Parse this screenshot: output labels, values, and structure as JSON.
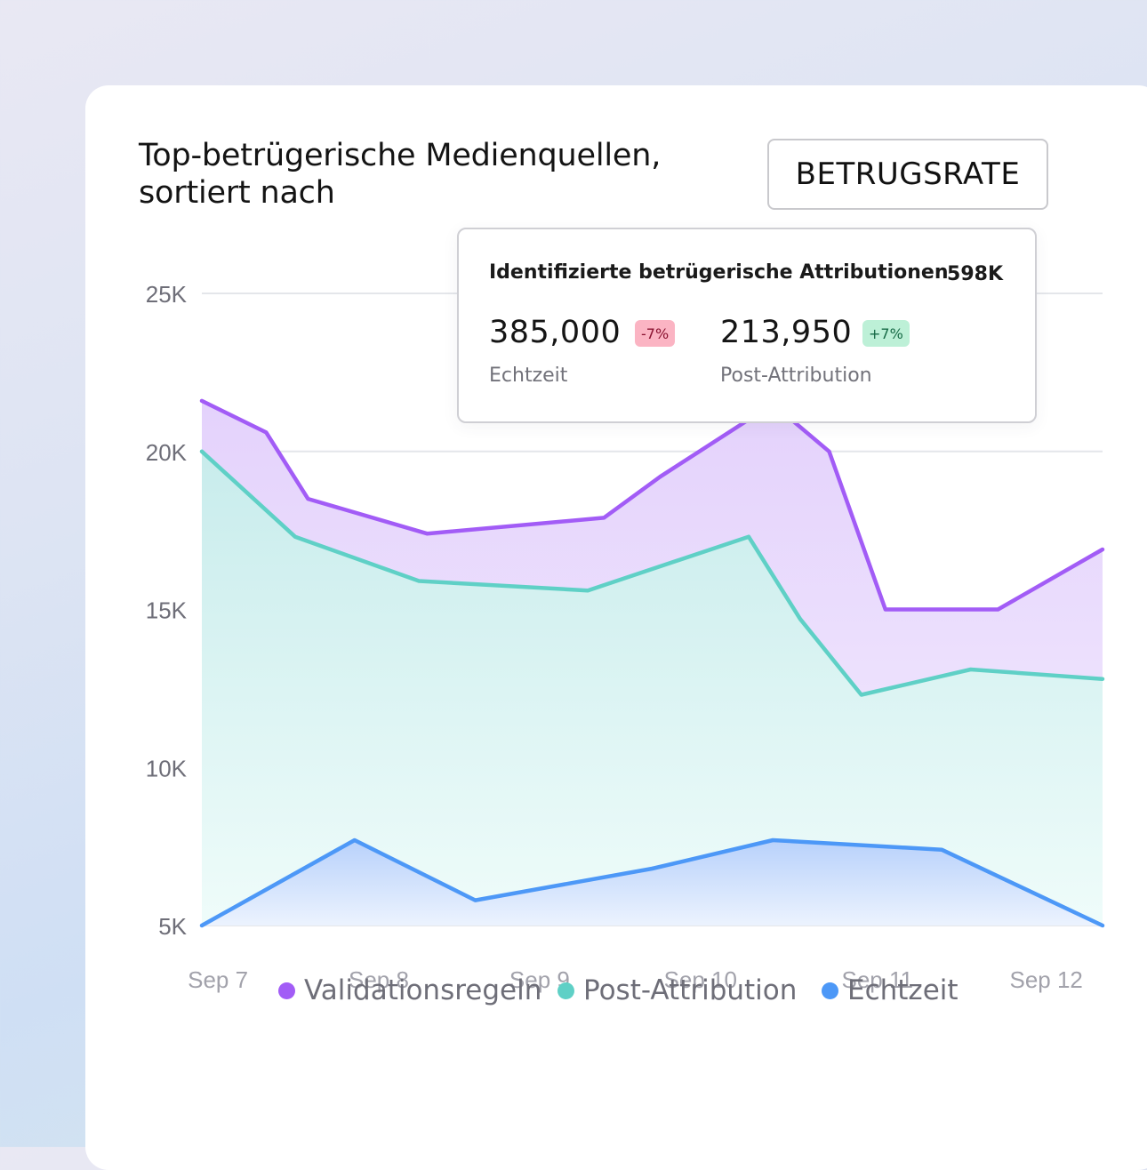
{
  "header": {
    "title": "Top-betrügerische Medienquellen, sortiert nach",
    "sort_button_label": "BETRUGSRATE"
  },
  "tooltip": {
    "title": "Identifizierte betrügerische Attributionen",
    "total": "598K",
    "items": [
      {
        "value": "385,000",
        "change": "-7%",
        "label": "Echtzeit"
      },
      {
        "value": "213,950",
        "change": "+7%",
        "label": "Post-Attribution"
      }
    ]
  },
  "colors": {
    "validation": "#a25cf6",
    "post_attribution": "#5fd0c6",
    "realtime": "#4d98f7",
    "validation_fill": "#e9d8fd",
    "post_fill": "#cdeeed",
    "realtime_fill": "#c2d8fb",
    "grid": "#e4e6ea"
  },
  "chart_data": {
    "type": "area",
    "ylim": [
      5000,
      25000
    ],
    "y_ticks": [
      "25K",
      "20K",
      "15K",
      "10K",
      "5K"
    ],
    "y_tick_values": [
      25000,
      20000,
      15000,
      10000,
      5000
    ],
    "x_tick_labels": [
      "Sep 7",
      "Sep 8",
      "Sep 9",
      "Sep 10",
      "Sep 11",
      "Sep 12"
    ],
    "x_tick_positions": [
      0.1,
      1.1,
      2.1,
      3.1,
      4.2,
      5.25
    ],
    "xlim": [
      0,
      5.6
    ],
    "grid": true,
    "legend": "bottom",
    "series": [
      {
        "name": "Validationsregeln",
        "color_key": "validation",
        "x": [
          0,
          0.4,
          0.66,
          1.4,
          2.5,
          2.85,
          3.55,
          3.9,
          4.25,
          4.95,
          5.6
        ],
        "values": [
          21600,
          20600,
          18500,
          17400,
          17900,
          19200,
          21500,
          20000,
          15000,
          15000,
          16900
        ]
      },
      {
        "name": "Post-Attribution",
        "color_key": "post_attribution",
        "x": [
          0,
          0.58,
          1.35,
          2.4,
          3.4,
          3.72,
          4.1,
          4.78,
          5.6
        ],
        "values": [
          20000,
          17300,
          15900,
          15600,
          17300,
          14700,
          12300,
          13100,
          12800
        ]
      },
      {
        "name": "Echtzeit",
        "color_key": "realtime",
        "x": [
          0,
          0.95,
          1.7,
          2.8,
          3.55,
          4.6,
          5.6
        ],
        "values": [
          5000,
          7700,
          5800,
          6800,
          7700,
          7400,
          5000
        ]
      }
    ]
  }
}
